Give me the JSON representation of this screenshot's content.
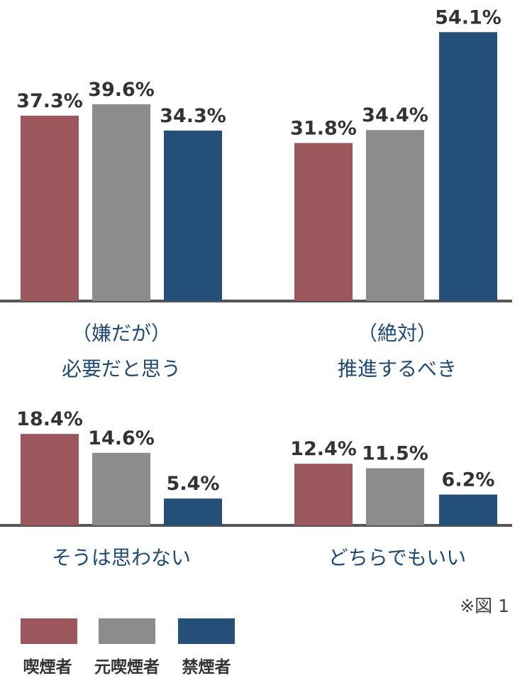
{
  "chart_data": [
    {
      "type": "bar",
      "categories": [
        "喫煙者",
        "元喫煙者",
        "禁煙者"
      ],
      "panels": [
        {
          "label_lines": [
            "（嫌だが）",
            "必要だと思う"
          ],
          "values": [
            37.3,
            39.6,
            34.3
          ],
          "value_labels": [
            "37.3%",
            "39.6%",
            "34.3%"
          ]
        },
        {
          "label_lines": [
            "（絶対）",
            "推進するべき"
          ],
          "values": [
            31.8,
            34.4,
            54.1
          ],
          "value_labels": [
            "31.8%",
            "34.4%",
            "54.1%"
          ]
        }
      ],
      "ylim": [
        0,
        57
      ]
    },
    {
      "type": "bar",
      "categories": [
        "喫煙者",
        "元喫煙者",
        "禁煙者"
      ],
      "panels": [
        {
          "label_lines": [
            "そうは思わない"
          ],
          "values": [
            18.4,
            14.6,
            5.4
          ],
          "value_labels": [
            "18.4%",
            "14.6%",
            "5.4%"
          ]
        },
        {
          "label_lines": [
            "どちらでもいい"
          ],
          "values": [
            12.4,
            11.5,
            6.2
          ],
          "value_labels": [
            "12.4%",
            "11.5%",
            "6.2%"
          ]
        }
      ],
      "ylim": [
        0,
        57
      ]
    }
  ],
  "series_colors": [
    "#9b575b",
    "#8c8c8c",
    "#244f78"
  ],
  "note": "※図 1",
  "legend": [
    "喫煙者",
    "元喫煙者",
    "禁煙者"
  ]
}
